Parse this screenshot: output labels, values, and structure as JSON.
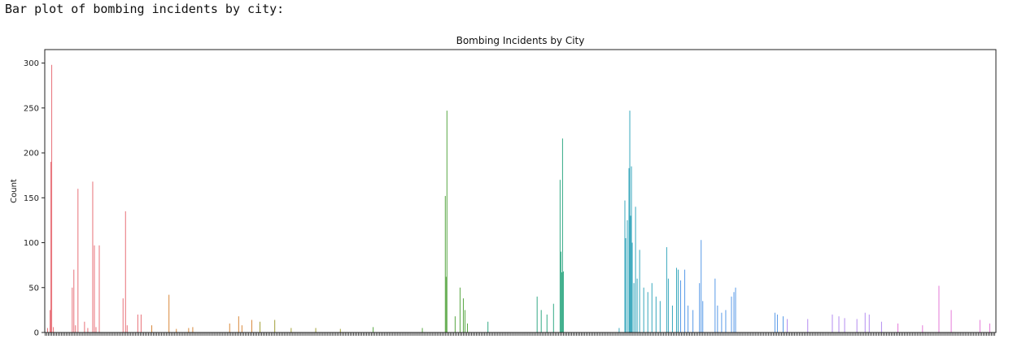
{
  "caption": "Bar plot of bombing incidents by city:",
  "chart_data": {
    "type": "bar",
    "title": "Bombing Incidents by City",
    "xlabel": "",
    "ylabel": "Count",
    "ylim": [
      0,
      315
    ],
    "yticks": [
      0,
      50,
      100,
      150,
      200,
      250,
      300
    ],
    "legend": false,
    "grid": false,
    "palette": [
      "#e8727a",
      "#d98a3d",
      "#a3a13a",
      "#5aa845",
      "#35ab86",
      "#39a8bd",
      "#5a9be8",
      "#b58ef0",
      "#e57ad9"
    ],
    "bar_count": 1160,
    "bars": [
      {
        "i": 3,
        "v": 5
      },
      {
        "i": 6,
        "v": 25
      },
      {
        "i": 7,
        "v": 190
      },
      {
        "i": 8,
        "v": 298
      },
      {
        "i": 10,
        "v": 6
      },
      {
        "i": 33,
        "v": 50
      },
      {
        "i": 35,
        "v": 70
      },
      {
        "i": 37,
        "v": 8
      },
      {
        "i": 40,
        "v": 160
      },
      {
        "i": 48,
        "v": 12
      },
      {
        "i": 52,
        "v": 5
      },
      {
        "i": 58,
        "v": 168
      },
      {
        "i": 60,
        "v": 97
      },
      {
        "i": 62,
        "v": 6
      },
      {
        "i": 66,
        "v": 97
      },
      {
        "i": 95,
        "v": 38
      },
      {
        "i": 98,
        "v": 135
      },
      {
        "i": 100,
        "v": 8
      },
      {
        "i": 113,
        "v": 20
      },
      {
        "i": 117,
        "v": 20
      },
      {
        "i": 130,
        "v": 8
      },
      {
        "i": 151,
        "v": 42
      },
      {
        "i": 160,
        "v": 4
      },
      {
        "i": 175,
        "v": 5
      },
      {
        "i": 180,
        "v": 6
      },
      {
        "i": 225,
        "v": 10
      },
      {
        "i": 236,
        "v": 18
      },
      {
        "i": 240,
        "v": 8
      },
      {
        "i": 252,
        "v": 14
      },
      {
        "i": 262,
        "v": 12
      },
      {
        "i": 280,
        "v": 14
      },
      {
        "i": 300,
        "v": 5
      },
      {
        "i": 330,
        "v": 5
      },
      {
        "i": 360,
        "v": 4
      },
      {
        "i": 400,
        "v": 6
      },
      {
        "i": 460,
        "v": 5
      },
      {
        "i": 488,
        "v": 152
      },
      {
        "i": 489,
        "v": 62
      },
      {
        "i": 490,
        "v": 247
      },
      {
        "i": 500,
        "v": 18
      },
      {
        "i": 506,
        "v": 50
      },
      {
        "i": 510,
        "v": 38
      },
      {
        "i": 512,
        "v": 25
      },
      {
        "i": 515,
        "v": 10
      },
      {
        "i": 540,
        "v": 12
      },
      {
        "i": 600,
        "v": 40
      },
      {
        "i": 605,
        "v": 25
      },
      {
        "i": 612,
        "v": 20
      },
      {
        "i": 620,
        "v": 32
      },
      {
        "i": 628,
        "v": 170
      },
      {
        "i": 629,
        "v": 90
      },
      {
        "i": 630,
        "v": 67
      },
      {
        "i": 631,
        "v": 216
      },
      {
        "i": 632,
        "v": 68
      },
      {
        "i": 700,
        "v": 5
      },
      {
        "i": 707,
        "v": 147
      },
      {
        "i": 708,
        "v": 105
      },
      {
        "i": 710,
        "v": 125
      },
      {
        "i": 712,
        "v": 183
      },
      {
        "i": 713,
        "v": 247
      },
      {
        "i": 714,
        "v": 130
      },
      {
        "i": 715,
        "v": 185
      },
      {
        "i": 716,
        "v": 100
      },
      {
        "i": 718,
        "v": 55
      },
      {
        "i": 720,
        "v": 140
      },
      {
        "i": 722,
        "v": 60
      },
      {
        "i": 725,
        "v": 92
      },
      {
        "i": 730,
        "v": 50
      },
      {
        "i": 735,
        "v": 45
      },
      {
        "i": 740,
        "v": 55
      },
      {
        "i": 745,
        "v": 40
      },
      {
        "i": 750,
        "v": 35
      },
      {
        "i": 758,
        "v": 95
      },
      {
        "i": 760,
        "v": 60
      },
      {
        "i": 765,
        "v": 30
      },
      {
        "i": 770,
        "v": 72
      },
      {
        "i": 772,
        "v": 70
      },
      {
        "i": 775,
        "v": 58
      },
      {
        "i": 780,
        "v": 70
      },
      {
        "i": 784,
        "v": 30
      },
      {
        "i": 790,
        "v": 25
      },
      {
        "i": 798,
        "v": 55
      },
      {
        "i": 800,
        "v": 103
      },
      {
        "i": 802,
        "v": 35
      },
      {
        "i": 817,
        "v": 60
      },
      {
        "i": 820,
        "v": 30
      },
      {
        "i": 825,
        "v": 22
      },
      {
        "i": 830,
        "v": 25
      },
      {
        "i": 837,
        "v": 40
      },
      {
        "i": 840,
        "v": 45
      },
      {
        "i": 842,
        "v": 50
      },
      {
        "i": 890,
        "v": 22
      },
      {
        "i": 893,
        "v": 20
      },
      {
        "i": 900,
        "v": 18
      },
      {
        "i": 905,
        "v": 15
      },
      {
        "i": 930,
        "v": 15
      },
      {
        "i": 960,
        "v": 20
      },
      {
        "i": 968,
        "v": 18
      },
      {
        "i": 975,
        "v": 16
      },
      {
        "i": 990,
        "v": 15
      },
      {
        "i": 1000,
        "v": 22
      },
      {
        "i": 1005,
        "v": 20
      },
      {
        "i": 1020,
        "v": 12
      },
      {
        "i": 1040,
        "v": 10
      },
      {
        "i": 1070,
        "v": 8
      },
      {
        "i": 1090,
        "v": 52
      },
      {
        "i": 1105,
        "v": 25
      },
      {
        "i": 1140,
        "v": 14
      },
      {
        "i": 1152,
        "v": 10
      }
    ]
  }
}
